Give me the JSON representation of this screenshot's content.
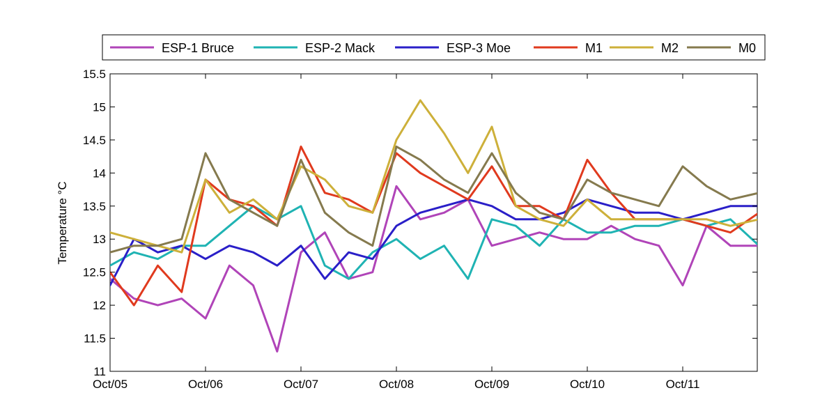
{
  "chart_data": {
    "type": "line",
    "title": "",
    "xlabel": "",
    "ylabel": "Temperature °C",
    "xlim": [
      "Oct/05",
      "Oct/11 + 0.8 day"
    ],
    "ylim": [
      11,
      15.5
    ],
    "x_ticks": [
      "Oct/05",
      "Oct/06",
      "Oct/07",
      "Oct/08",
      "Oct/09",
      "Oct/10",
      "Oct/11"
    ],
    "y_ticks": [
      "11",
      "11.5",
      "12",
      "12.5",
      "13",
      "13.5",
      "14",
      "14.5",
      "15",
      "15.5"
    ],
    "grid": false,
    "legend_position": "top",
    "x": [
      "Oct/05 00:00",
      "Oct/05 06:00",
      "Oct/05 12:00",
      "Oct/05 18:00",
      "Oct/06 00:00",
      "Oct/06 06:00",
      "Oct/06 12:00",
      "Oct/06 18:00",
      "Oct/07 00:00",
      "Oct/07 06:00",
      "Oct/07 12:00",
      "Oct/07 18:00",
      "Oct/08 00:00",
      "Oct/08 06:00",
      "Oct/08 12:00",
      "Oct/08 18:00",
      "Oct/09 00:00",
      "Oct/09 06:00",
      "Oct/09 12:00",
      "Oct/09 18:00",
      "Oct/10 00:00",
      "Oct/10 06:00",
      "Oct/10 12:00",
      "Oct/10 18:00",
      "Oct/11 00:00",
      "Oct/11 06:00",
      "Oct/11 12:00",
      "Oct/11 19:12"
    ],
    "series": [
      {
        "name": "ESP-1 Bruce",
        "color": "#b044b8",
        "values": [
          12.4,
          12.1,
          12.0,
          12.1,
          11.8,
          12.6,
          12.3,
          11.3,
          12.8,
          13.1,
          12.4,
          12.5,
          13.8,
          13.3,
          13.4,
          13.6,
          12.9,
          13.0,
          13.1,
          13.0,
          13.0,
          13.2,
          13.0,
          12.9,
          12.3,
          13.2,
          12.9,
          12.9
        ]
      },
      {
        "name": "ESP-2 Mack",
        "color": "#1fb3b3",
        "values": [
          12.6,
          12.8,
          12.7,
          12.9,
          12.9,
          13.2,
          13.5,
          13.3,
          13.5,
          12.6,
          12.4,
          12.8,
          13.0,
          12.7,
          12.9,
          12.4,
          13.3,
          13.2,
          12.9,
          13.3,
          13.1,
          13.1,
          13.2,
          13.2,
          13.3,
          13.2,
          13.3,
          12.9
        ]
      },
      {
        "name": "ESP-3 Moe",
        "color": "#2a1fc8",
        "values": [
          12.3,
          13.0,
          12.8,
          12.9,
          12.7,
          12.9,
          12.8,
          12.6,
          12.9,
          12.4,
          12.8,
          12.7,
          13.2,
          13.4,
          13.5,
          13.6,
          13.5,
          13.3,
          13.3,
          13.4,
          13.6,
          13.5,
          13.4,
          13.4,
          13.3,
          13.4,
          13.5,
          13.5
        ]
      },
      {
        "name": "M1",
        "color": "#e03a1e",
        "values": [
          12.5,
          12.0,
          12.6,
          12.2,
          13.9,
          13.6,
          13.5,
          13.2,
          14.4,
          13.7,
          13.6,
          13.4,
          14.3,
          14.0,
          13.8,
          13.6,
          14.1,
          13.5,
          13.5,
          13.3,
          14.2,
          13.7,
          13.3,
          13.3,
          13.3,
          13.2,
          13.1,
          13.4
        ]
      },
      {
        "name": "M2",
        "color": "#cdb03a",
        "values": [
          13.1,
          13.0,
          12.9,
          12.8,
          13.9,
          13.4,
          13.6,
          13.3,
          14.1,
          13.9,
          13.5,
          13.4,
          14.5,
          15.1,
          14.6,
          14.0,
          14.7,
          13.5,
          13.3,
          13.2,
          13.6,
          13.3,
          13.3,
          13.3,
          13.3,
          13.3,
          13.2,
          13.3
        ]
      },
      {
        "name": "M0",
        "color": "#857a4e",
        "values": [
          12.8,
          12.9,
          12.9,
          13.0,
          14.3,
          13.6,
          13.4,
          13.2,
          14.2,
          13.4,
          13.1,
          12.9,
          14.4,
          14.2,
          13.9,
          13.7,
          14.3,
          13.7,
          13.4,
          13.3,
          13.9,
          13.7,
          13.6,
          13.5,
          14.1,
          13.8,
          13.6,
          13.7
        ]
      }
    ]
  }
}
